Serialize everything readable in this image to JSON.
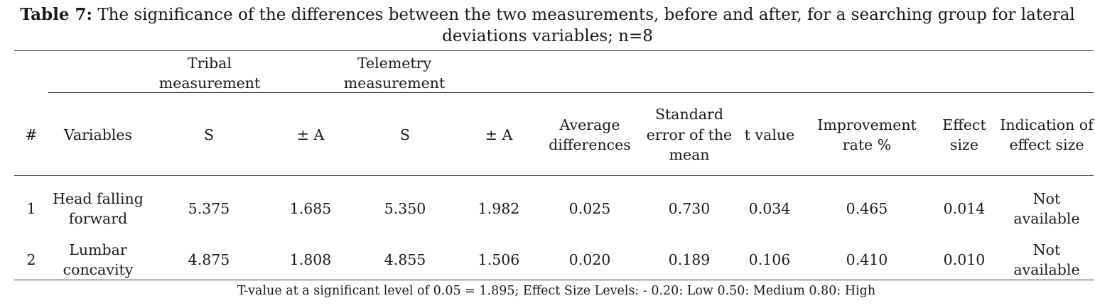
{
  "caption": {
    "label": "Table 7:",
    "text": " The significance of the differences between the two measurements, before and after, for a searching group for lateral deviations variables; n=8"
  },
  "group_headers": {
    "tribal": "Tribal measurement",
    "telemetry": "Telemetry measurement"
  },
  "columns": {
    "num": "#",
    "variables": "Variables",
    "tribal_s": "S",
    "tribal_a": "± A",
    "tele_s": "S",
    "tele_a": "± A",
    "avg": "Average differences",
    "se": "Standard error of the mean",
    "t": "t value",
    "imp": "Improvement rate %",
    "eff": "Effect size",
    "ind": "Indication of effect size"
  },
  "rows": [
    {
      "num": "1",
      "variable": "Head falling forward",
      "tribal_s": "5.375",
      "tribal_a": "1.685",
      "tele_s": "5.350",
      "tele_a": "1.982",
      "avg": "0.025",
      "se": "0.730",
      "t": "0.034",
      "imp": "0.465",
      "eff": "0.014",
      "ind": "Not available"
    },
    {
      "num": "2",
      "variable": "Lumbar concavity",
      "tribal_s": "4.875",
      "tribal_a": "1.808",
      "tele_s": "4.855",
      "tele_a": "1.506",
      "avg": "0.020",
      "se": "0.189",
      "t": "0.106",
      "imp": "0.410",
      "eff": "0.010",
      "ind": "Not available"
    }
  ],
  "footer": "T-value at a significant level of 0.05 = 1.895; Effect Size Levels: - 0.20: Low 0.50: Medium 0.80: High"
}
